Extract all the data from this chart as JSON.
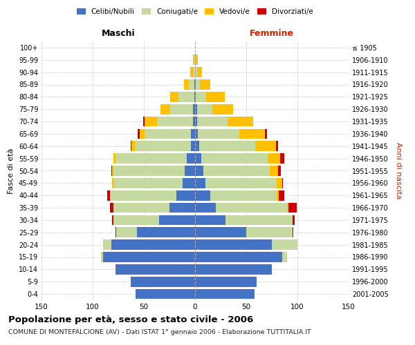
{
  "age_groups": [
    "0-4",
    "5-9",
    "10-14",
    "15-19",
    "20-24",
    "25-29",
    "30-34",
    "35-39",
    "40-44",
    "45-49",
    "50-54",
    "55-59",
    "60-64",
    "65-69",
    "70-74",
    "75-79",
    "80-84",
    "85-89",
    "90-94",
    "95-99",
    "100+"
  ],
  "birth_years": [
    "2001-2005",
    "1996-2000",
    "1991-1995",
    "1986-1990",
    "1981-1985",
    "1976-1980",
    "1971-1975",
    "1966-1970",
    "1961-1965",
    "1956-1960",
    "1951-1955",
    "1946-1950",
    "1941-1945",
    "1936-1940",
    "1931-1935",
    "1926-1930",
    "1921-1925",
    "1916-1920",
    "1911-1915",
    "1906-1910",
    "≤ 1905"
  ],
  "males": {
    "celibi": [
      58,
      63,
      78,
      90,
      82,
      57,
      35,
      25,
      18,
      12,
      10,
      8,
      4,
      4,
      2,
      2,
      1,
      1,
      0,
      0,
      0
    ],
    "coniugati": [
      0,
      0,
      0,
      2,
      8,
      20,
      45,
      55,
      65,
      68,
      70,
      70,
      55,
      45,
      35,
      22,
      15,
      5,
      2,
      1,
      0
    ],
    "vedovi": [
      0,
      0,
      0,
      0,
      0,
      0,
      0,
      0,
      0,
      1,
      1,
      2,
      3,
      5,
      12,
      10,
      8,
      5,
      3,
      1,
      0
    ],
    "divorziati": [
      0,
      0,
      0,
      0,
      0,
      1,
      1,
      3,
      3,
      0,
      1,
      0,
      1,
      2,
      2,
      0,
      0,
      0,
      0,
      0,
      0
    ]
  },
  "females": {
    "nubili": [
      58,
      60,
      75,
      85,
      75,
      50,
      30,
      20,
      15,
      10,
      8,
      6,
      4,
      3,
      2,
      2,
      1,
      1,
      0,
      0,
      0
    ],
    "coniugate": [
      0,
      0,
      0,
      5,
      25,
      45,
      65,
      70,
      65,
      70,
      65,
      65,
      55,
      40,
      30,
      15,
      10,
      4,
      2,
      1,
      0
    ],
    "vedove": [
      0,
      0,
      0,
      0,
      0,
      0,
      0,
      1,
      2,
      5,
      8,
      12,
      20,
      25,
      25,
      20,
      18,
      10,
      5,
      2,
      0
    ],
    "divorziate": [
      0,
      0,
      0,
      0,
      0,
      1,
      2,
      8,
      5,
      1,
      3,
      4,
      2,
      2,
      0,
      0,
      0,
      0,
      0,
      0,
      0
    ]
  },
  "colors": {
    "celibi": "#4472c4",
    "coniugati": "#c5d9a0",
    "vedovi": "#ffc000",
    "divorziati": "#cc0000"
  },
  "xlim": 150,
  "title": "Popolazione per età, sesso e stato civile - 2006",
  "subtitle": "COMUNE DI MONTEFALCIONE (AV) - Dati ISTAT 1° gennaio 2006 - Elaborazione TUTTITALIA.IT",
  "xlabel_left": "Maschi",
  "xlabel_right": "Femmine",
  "ylabel_left": "Fasce di età",
  "ylabel_right": "Anni di nascita"
}
